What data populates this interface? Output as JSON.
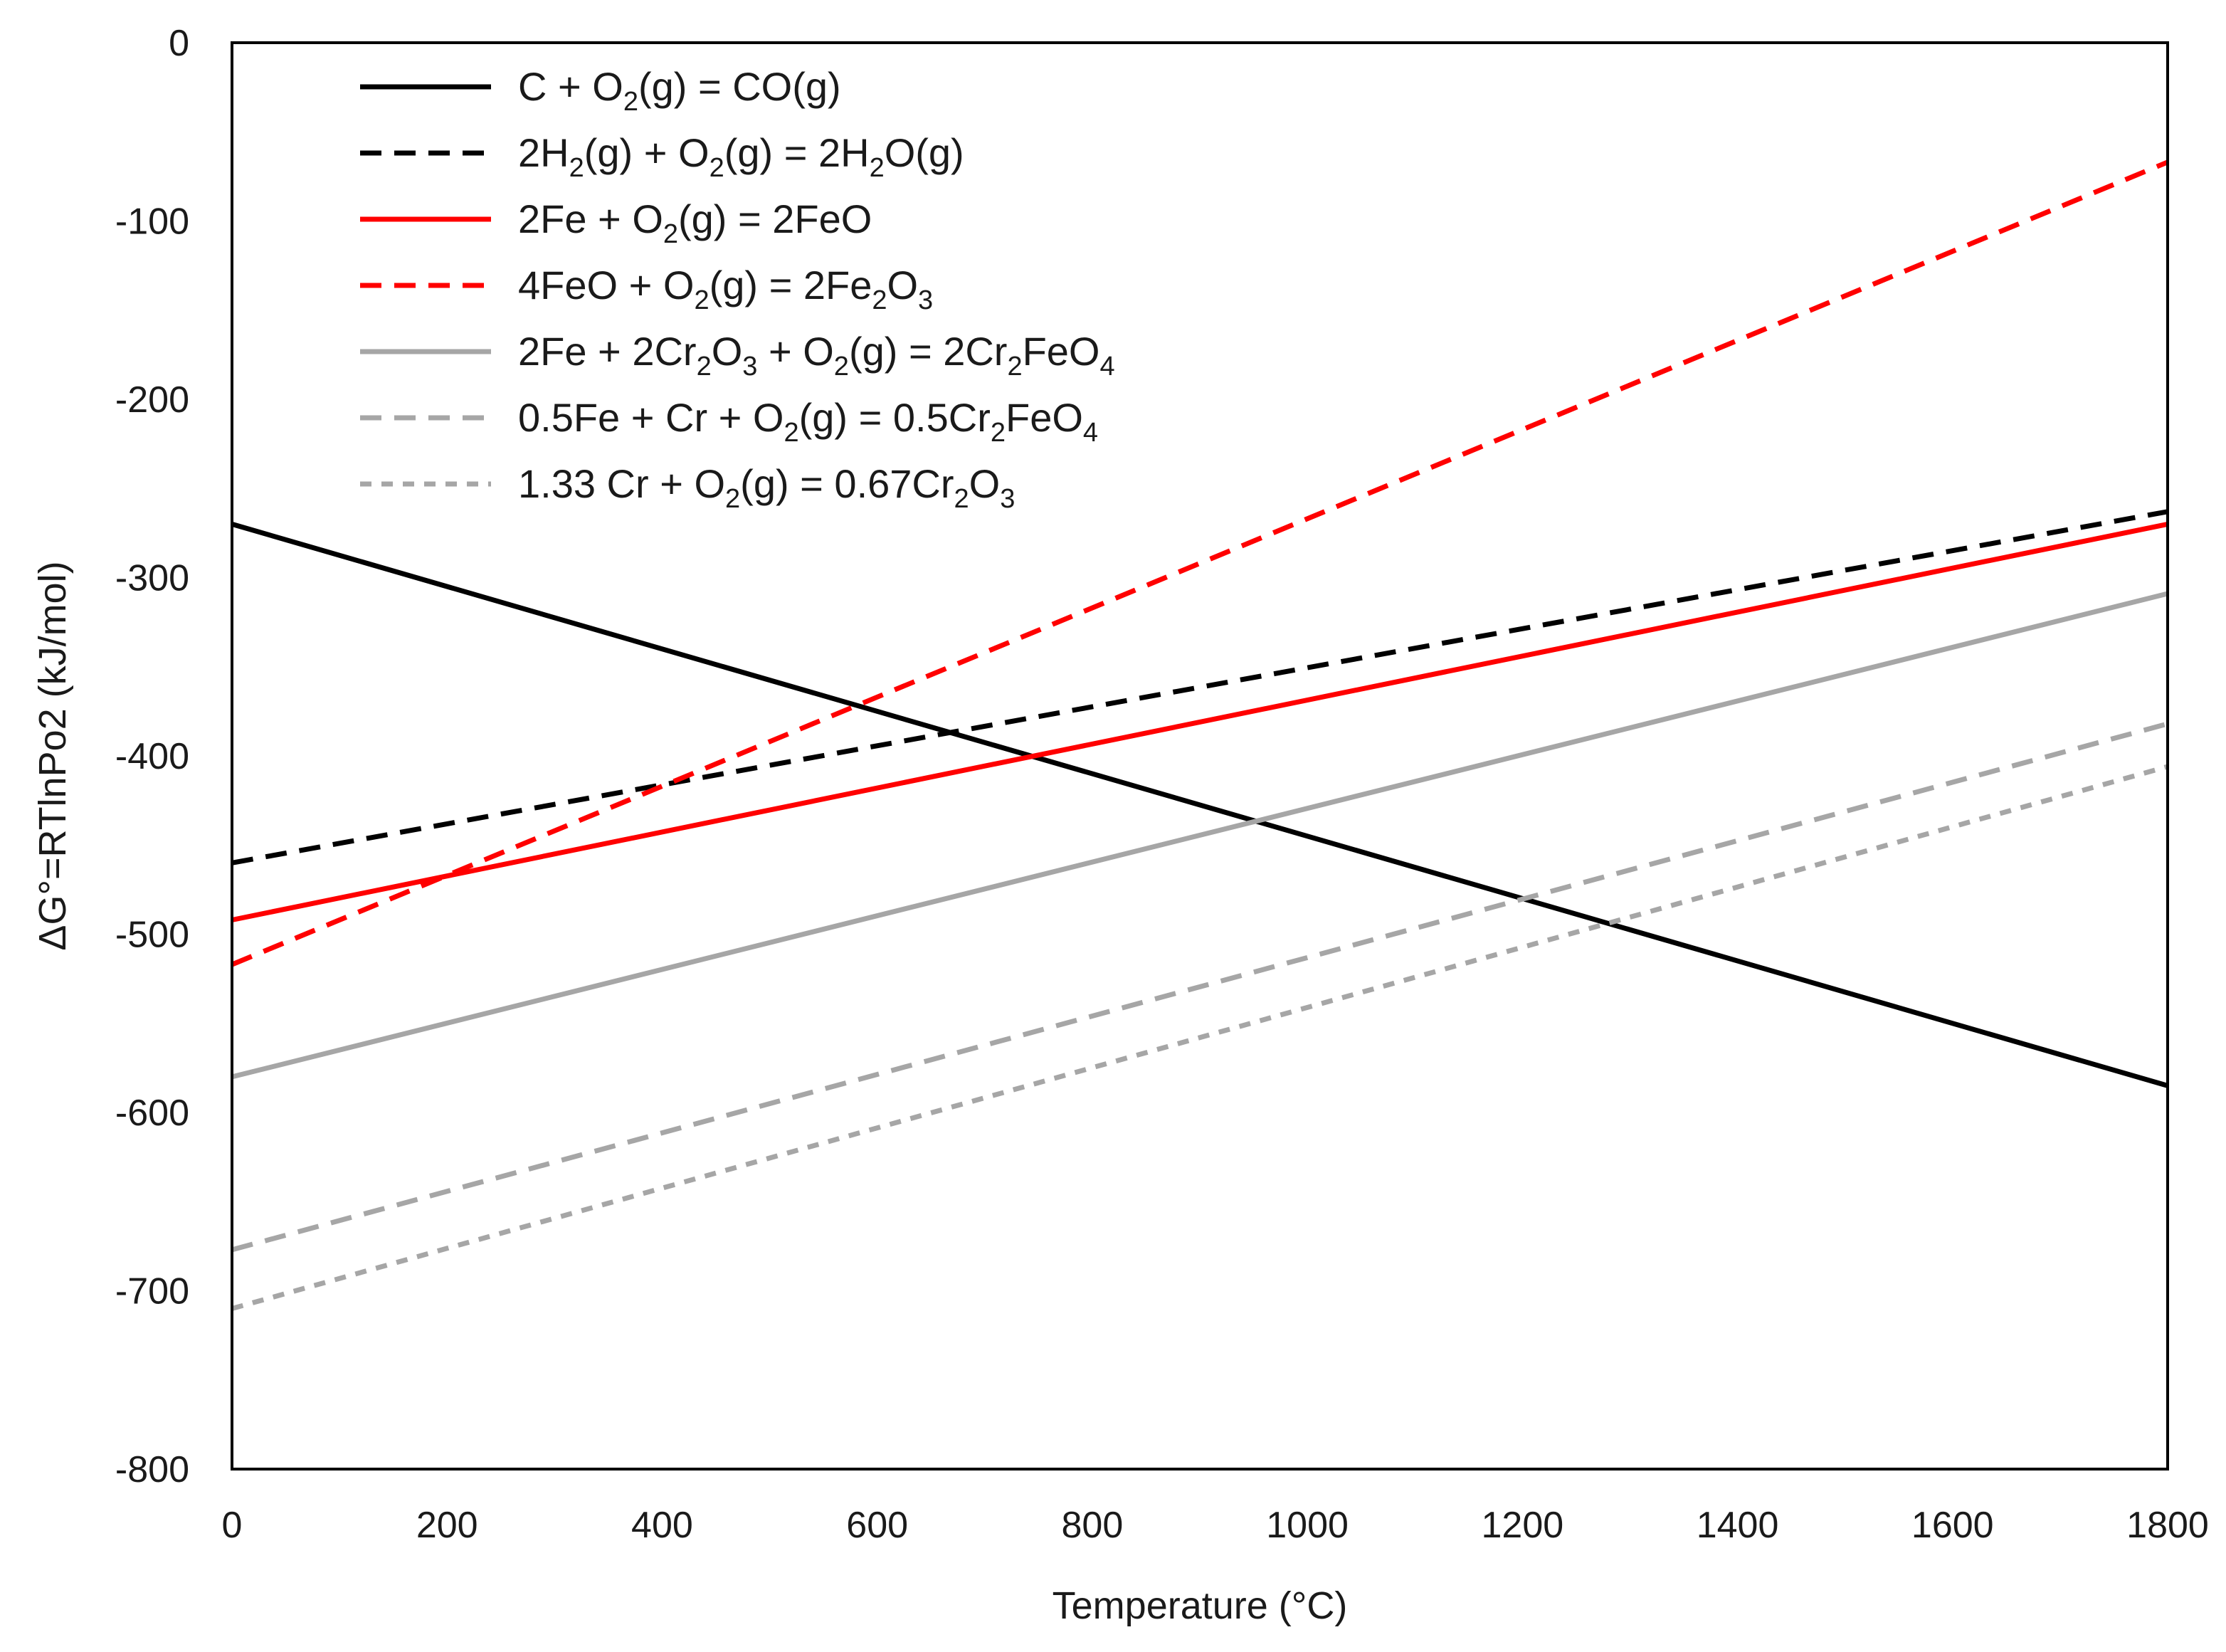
{
  "chart_data": {
    "type": "line",
    "title": "",
    "xlabel": "Temperature (°C)",
    "ylabel": "ΔG°=RTlnPo2 (kJ/mol)",
    "xlim": [
      0,
      1800
    ],
    "ylim": [
      -800,
      0
    ],
    "xticks": [
      0,
      200,
      400,
      600,
      800,
      1000,
      1200,
      1400,
      1600,
      1800
    ],
    "yticks": [
      0,
      -100,
      -200,
      -300,
      -400,
      -500,
      -600,
      -700,
      -800
    ],
    "grid": false,
    "legend_position": "top-left",
    "x": [
      0,
      1800
    ],
    "series": [
      {
        "name": "C + O2(g) = CO(g)",
        "label_parts": [
          [
            "C + O",
            ""
          ],
          [
            "2",
            "sub"
          ],
          [
            "(g) = CO(g)",
            ""
          ]
        ],
        "color": "#000000",
        "dash": "solid",
        "values": [
          -270,
          -585
        ]
      },
      {
        "name": "2H2(g) + O2(g) = 2H2O(g)",
        "label_parts": [
          [
            "2H",
            ""
          ],
          [
            "2",
            "sub"
          ],
          [
            "(g) + O",
            ""
          ],
          [
            "2",
            "sub"
          ],
          [
            "(g) = 2H",
            ""
          ],
          [
            "2",
            "sub"
          ],
          [
            "O(g)",
            ""
          ]
        ],
        "color": "#000000",
        "dash": "dashed",
        "values": [
          -460,
          -263
        ]
      },
      {
        "name": "2Fe + O2(g) = 2FeO",
        "label_parts": [
          [
            "2Fe + O",
            ""
          ],
          [
            "2",
            "sub"
          ],
          [
            "(g) = 2FeO",
            ""
          ]
        ],
        "color": "#ff0000",
        "dash": "solid",
        "values": [
          -492,
          -270
        ]
      },
      {
        "name": "4FeO + O2(g) = 2Fe2O3",
        "label_parts": [
          [
            "4FeO + O",
            ""
          ],
          [
            "2",
            "sub"
          ],
          [
            "(g) = 2Fe",
            ""
          ],
          [
            "2",
            "sub"
          ],
          [
            "O",
            ""
          ],
          [
            "3",
            "sub"
          ]
        ],
        "color": "#ff0000",
        "dash": "dashed",
        "values": [
          -517,
          -67
        ]
      },
      {
        "name": "2Fe + 2Cr2O3 + O2(g) = 2Cr2FeO4",
        "label_parts": [
          [
            "2Fe + 2Cr",
            ""
          ],
          [
            "2",
            "sub"
          ],
          [
            "O",
            ""
          ],
          [
            "3",
            "sub"
          ],
          [
            " + O",
            ""
          ],
          [
            "2",
            "sub"
          ],
          [
            "(g) = 2Cr",
            ""
          ],
          [
            "2",
            "sub"
          ],
          [
            "FeO",
            ""
          ],
          [
            "4",
            "sub"
          ]
        ],
        "color": "#a6a6a6",
        "dash": "solid",
        "values": [
          -580,
          -309
        ]
      },
      {
        "name": "0.5Fe + Cr + O2(g) = 0.5Cr2FeO4",
        "label_parts": [
          [
            "0.5Fe + Cr + O",
            ""
          ],
          [
            "2",
            "sub"
          ],
          [
            "(g) = 0.5Cr",
            ""
          ],
          [
            "2",
            "sub"
          ],
          [
            "FeO",
            ""
          ],
          [
            "4",
            "sub"
          ]
        ],
        "color": "#a6a6a6",
        "dash": "dashed",
        "values": [
          -677,
          -382
        ]
      },
      {
        "name": "1.33 Cr + O2(g) = 0.67Cr2O3",
        "label_parts": [
          [
            "1.33 Cr + O",
            ""
          ],
          [
            "2",
            "sub"
          ],
          [
            "(g) = 0.67Cr",
            ""
          ],
          [
            "2",
            "sub"
          ],
          [
            "O",
            ""
          ],
          [
            "3",
            "sub"
          ]
        ],
        "color": "#a6a6a6",
        "dash": "dotted",
        "values": [
          -710,
          -406
        ]
      }
    ]
  }
}
